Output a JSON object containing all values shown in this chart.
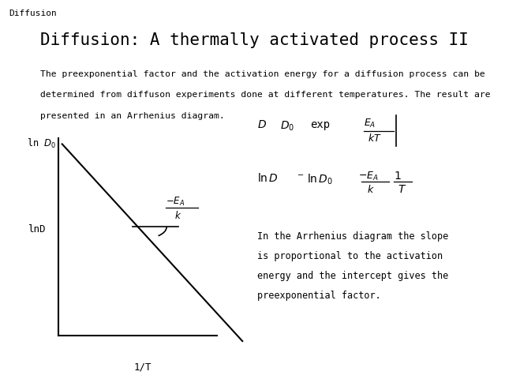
{
  "background_color": "#ffffff",
  "header_text": "Diffusion",
  "title": "Diffusion: A thermally activated process II",
  "body_line1": "The preexponential factor and the activation energy for a diffusion process can be",
  "body_line2": "determined from diffuson experiments done at different temperatures. The result are",
  "body_line3": "presented in an Arrhenius diagram.",
  "note_line1": "In the Arrhenius diagram the slope",
  "note_line2": "is proportional to the activation",
  "note_line3": "energy and the intercept gives the",
  "note_line4": "preexponential factor.",
  "xlabel": "1/T",
  "ylabel": "lnD",
  "lnD0_label": "ln D",
  "lnD0_sub": "0",
  "font_family": "monospace"
}
